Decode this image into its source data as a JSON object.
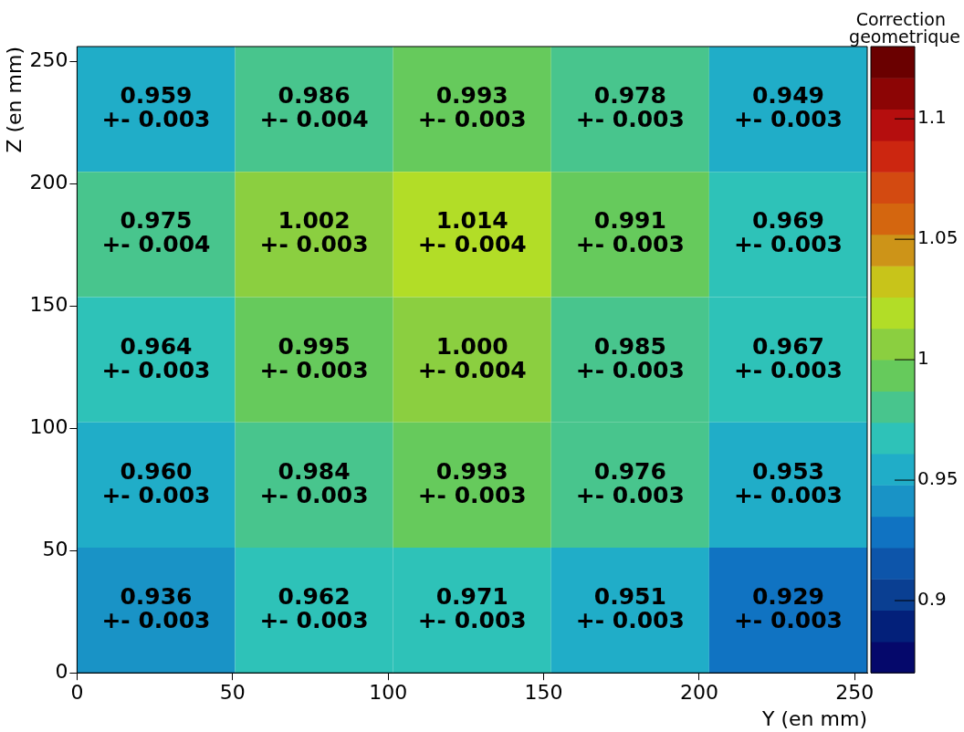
{
  "chart_data": {
    "type": "heatmap",
    "xlabel": "Y (en mm)",
    "ylabel": "Z (en mm)",
    "clabel": "Correction geometrique",
    "xlim": [
      0,
      254
    ],
    "xticks": [
      0,
      50,
      100,
      150,
      200,
      250
    ],
    "ylim": [
      0,
      256
    ],
    "yticks": [
      0,
      50,
      100,
      150,
      200,
      250
    ],
    "clim": [
      0.87,
      1.13
    ],
    "cticks": [
      0.9,
      0.95,
      1,
      1.05,
      1.1
    ],
    "cells": [
      [
        0.959,
        0.986,
        0.993,
        0.978,
        0.949
      ],
      [
        0.975,
        1.002,
        1.014,
        0.991,
        0.969
      ],
      [
        0.964,
        0.995,
        1.0,
        0.985,
        0.967
      ],
      [
        0.96,
        0.984,
        0.993,
        0.976,
        0.953
      ],
      [
        0.936,
        0.962,
        0.971,
        0.951,
        0.929
      ]
    ],
    "cell_labels": [
      [
        "0.959\n+- 0.003",
        "0.986\n+- 0.004",
        "0.993\n+- 0.003",
        "0.978\n+- 0.003",
        "0.949\n+- 0.003"
      ],
      [
        "0.975\n+- 0.004",
        "1.002\n+- 0.003",
        "1.014\n+- 0.004",
        "0.991\n+- 0.003",
        "0.969\n+- 0.003"
      ],
      [
        "0.964\n+- 0.003",
        "0.995\n+- 0.003",
        "1.000\n+- 0.004",
        "0.985\n+- 0.003",
        "0.967\n+- 0.003"
      ],
      [
        "0.960\n+- 0.003",
        "0.984\n+- 0.003",
        "0.993\n+- 0.003",
        "0.976\n+- 0.003",
        "0.953\n+- 0.003"
      ],
      [
        "0.936\n+- 0.003",
        "0.962\n+- 0.003",
        "0.971\n+- 0.003",
        "0.951\n+- 0.003",
        "0.929\n+- 0.003"
      ]
    ]
  }
}
